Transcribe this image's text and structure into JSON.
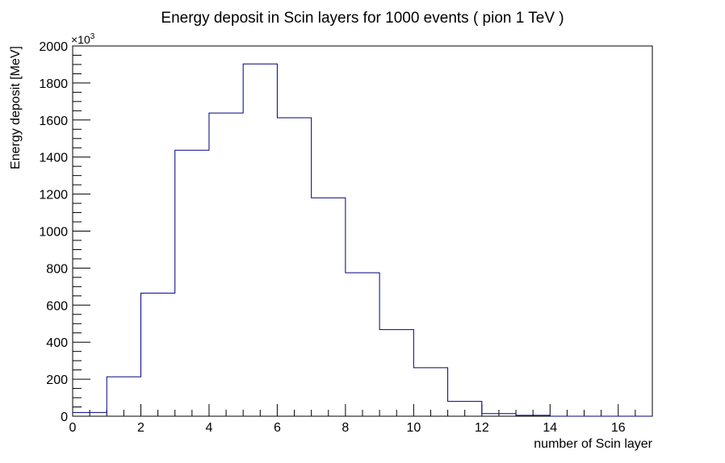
{
  "chart_data": {
    "type": "bar",
    "title": "Energy deposit in Scin layers for 1000 events ( pion  1 TeV )",
    "xlabel": "number of Scin layer",
    "ylabel": "Energy deposit [MeV]",
    "y_multiplier": "×10",
    "y_multiplier_exp": "3",
    "xlim": [
      0,
      17
    ],
    "ylim": [
      0,
      2000
    ],
    "bin_width": 1,
    "x_ticks": [
      0,
      2,
      4,
      6,
      8,
      10,
      12,
      14,
      16
    ],
    "y_ticks": [
      0,
      200,
      400,
      600,
      800,
      1000,
      1200,
      1400,
      1600,
      1800,
      2000
    ],
    "bin_edges": [
      0,
      1,
      2,
      3,
      4,
      5,
      6,
      7,
      8,
      9,
      10,
      11,
      12,
      13,
      14,
      15,
      16,
      17
    ],
    "values": [
      20,
      213,
      665,
      1437,
      1638,
      1903,
      1612,
      1180,
      775,
      468,
      262,
      80,
      14,
      5,
      0,
      0,
      0
    ],
    "line_color": "#000080",
    "grid": false,
    "legend": "none"
  }
}
